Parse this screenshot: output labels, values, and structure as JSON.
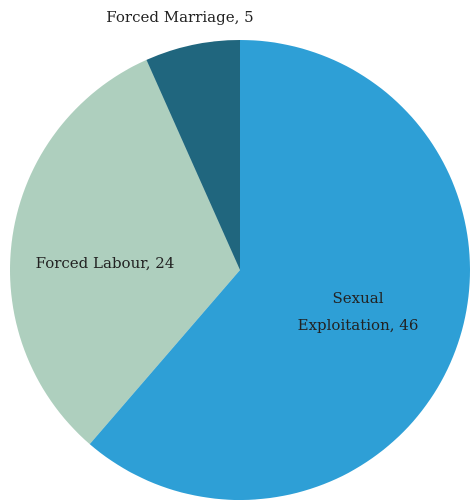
{
  "chart_data": {
    "type": "pie",
    "values": [
      46,
      24,
      5
    ],
    "value_labels": [
      [
        "Sexual",
        "Exploitation, 46"
      ],
      [
        "Forced Labour, 24"
      ],
      [
        "Forced Marriage, 5"
      ]
    ],
    "colors": [
      "#2e9fd6",
      "#aecfbe",
      "#20667e"
    ]
  }
}
